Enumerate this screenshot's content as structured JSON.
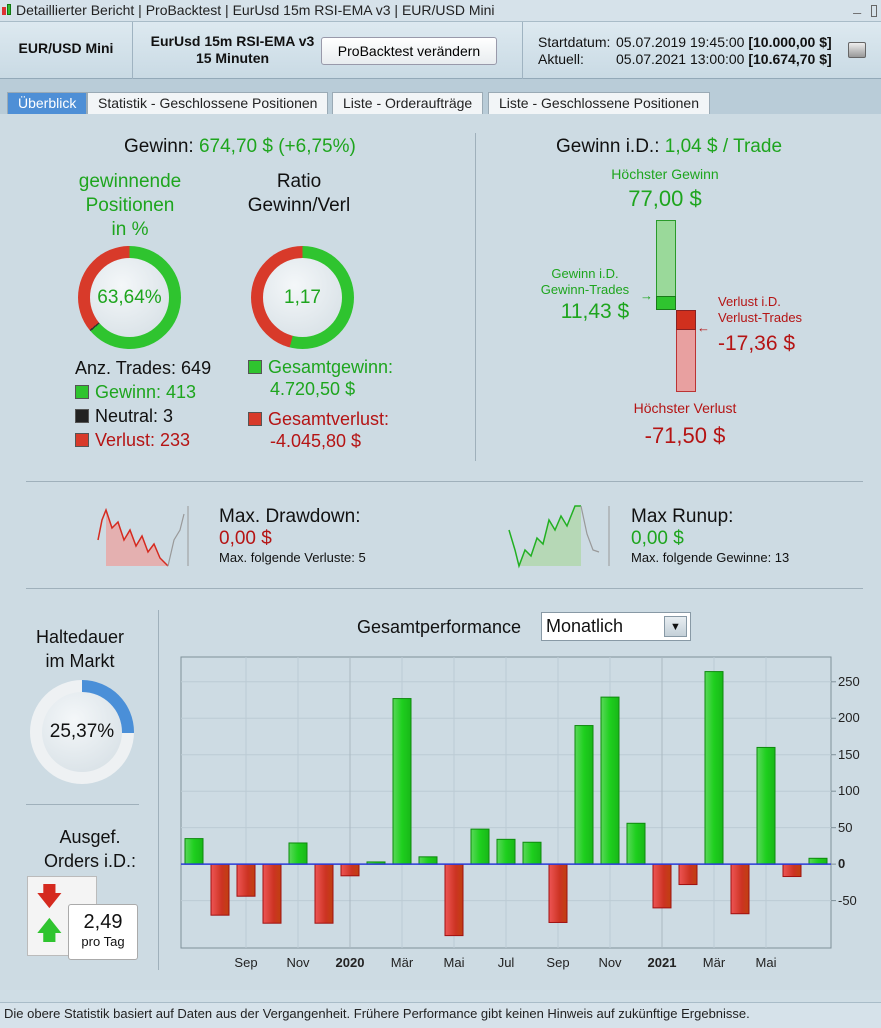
{
  "titlebar": {
    "items": [
      "Detaillierter Bericht",
      "ProBacktest",
      "EurUsd 15m RSI-EMA v3",
      "EUR/USD Mini"
    ],
    "minimize": "_"
  },
  "header": {
    "instrument": "EUR/USD Mini",
    "strategy": "EurUsd 15m RSI-EMA v3",
    "timeframe": "15 Minuten",
    "edit_button": "ProBacktest verändern",
    "start_label": "Startdatum:",
    "start_date": "05.07.2019 19:45:00",
    "start_value": "[10.000,00 $]",
    "current_label": "Aktuell:",
    "current_date": "05.07.2021 13:00:00",
    "current_value": "[10.674,70 $]"
  },
  "tabs": [
    "Überblick",
    "Statistik - Geschlossene Positionen",
    "Liste - Orderaufträge",
    "Liste - Geschlossene Positionen"
  ],
  "summary": {
    "gain_label": "Gewinn:",
    "gain_value": "674,70 $ (+6,75%)",
    "win_pos_label1": "gewinnende",
    "win_pos_label2": "Positionen",
    "win_pos_label3": "in %",
    "win_pct": "63,64%",
    "win_fraction": 0.6364,
    "ratio_label1": "Ratio",
    "ratio_label2": "Gewinn/Verl",
    "ratio_value": "1,17",
    "trades_label": "Anz. Trades: 649",
    "win_trades": "Gewinn: 413",
    "neutral_trades": "Neutral: 3",
    "loss_trades": "Verlust: 233",
    "total_gain_label": "Gesamtgewinn:",
    "total_gain": "4.720,50 $",
    "total_loss_label": "Gesamtverlust:",
    "total_loss": "-4.045,80 $"
  },
  "avg": {
    "label": "Gewinn i.D.:",
    "value": "1,04 $ / Trade",
    "max_gain_label": "Höchster Gewinn",
    "max_gain": "77,00 $",
    "avg_win_label1": "Gewinn i.D.",
    "avg_win_label2": "Gewinn-Trades",
    "avg_win": "11,43 $",
    "avg_loss_label1": "Verlust i.D.",
    "avg_loss_label2": "Verlust-Trades",
    "avg_loss": "-17,36 $",
    "max_loss_label": "Höchster Verlust",
    "max_loss": "-71,50 $"
  },
  "drawdown": {
    "label": "Max. Drawdown:",
    "value": "0,00 $",
    "sub": "Max. folgende Verluste: 5"
  },
  "runup": {
    "label": "Max Runup:",
    "value": "0,00 $",
    "sub": "Max. folgende Gewinne: 13"
  },
  "holding": {
    "label1": "Haltedauer",
    "label2": "im Markt",
    "value": "25,37%",
    "fraction": 0.2537
  },
  "orders": {
    "label1": "Ausgef.",
    "label2": "Orders i.D.:",
    "value": "2,49",
    "unit": "pro Tag"
  },
  "perf": {
    "title": "Gesamtperformance",
    "period": "Monatlich"
  },
  "chart_data": {
    "type": "bar",
    "title": "Gesamtperformance",
    "categories": [
      "Jul 2019",
      "Aug 2019",
      "Sep 2019",
      "Okt 2019",
      "Nov 2019",
      "Dez 2019",
      "Jan 2020",
      "Feb 2020",
      "Mär 2020",
      "Apr 2020",
      "Mai 2020",
      "Jun 2020",
      "Jul 2020",
      "Aug 2020",
      "Sep 2020",
      "Okt 2020",
      "Nov 2020",
      "Dez 2020",
      "Jan 2021",
      "Feb 2021",
      "Mär 2021",
      "Apr 2021",
      "Mai 2021",
      "Jun 2021",
      "Jul 2021"
    ],
    "values": [
      35,
      -70,
      -44,
      -81,
      29,
      -81,
      -16,
      3,
      227,
      10,
      -98,
      48,
      34,
      30,
      -80,
      190,
      229,
      56,
      -60,
      -28,
      264,
      -68,
      160,
      -17,
      8
    ],
    "ylim": [
      -115,
      284
    ],
    "yticks": [
      250,
      200,
      150,
      100,
      50,
      0,
      -50
    ],
    "xticks": [
      {
        "i": 2,
        "label": "Sep"
      },
      {
        "i": 4,
        "label": "Nov"
      },
      {
        "i": 6,
        "label": "2020",
        "bold": true
      },
      {
        "i": 8,
        "label": "Mär"
      },
      {
        "i": 10,
        "label": "Mai"
      },
      {
        "i": 12,
        "label": "Jul"
      },
      {
        "i": 14,
        "label": "Sep"
      },
      {
        "i": 16,
        "label": "Nov"
      },
      {
        "i": 18,
        "label": "2021",
        "bold": true
      },
      {
        "i": 20,
        "label": "Mär"
      },
      {
        "i": 22,
        "label": "Mai"
      }
    ],
    "grid": true,
    "colors": {
      "positive": "#22cc22",
      "negative": "#d83a2a",
      "zero_line": "#2b3ad8"
    }
  },
  "footer": "Die obere Statistik basiert auf Daten aus der Vergangenheit. Frühere Performance gibt keinen Hinweis auf zukünftige Ergebnisse."
}
